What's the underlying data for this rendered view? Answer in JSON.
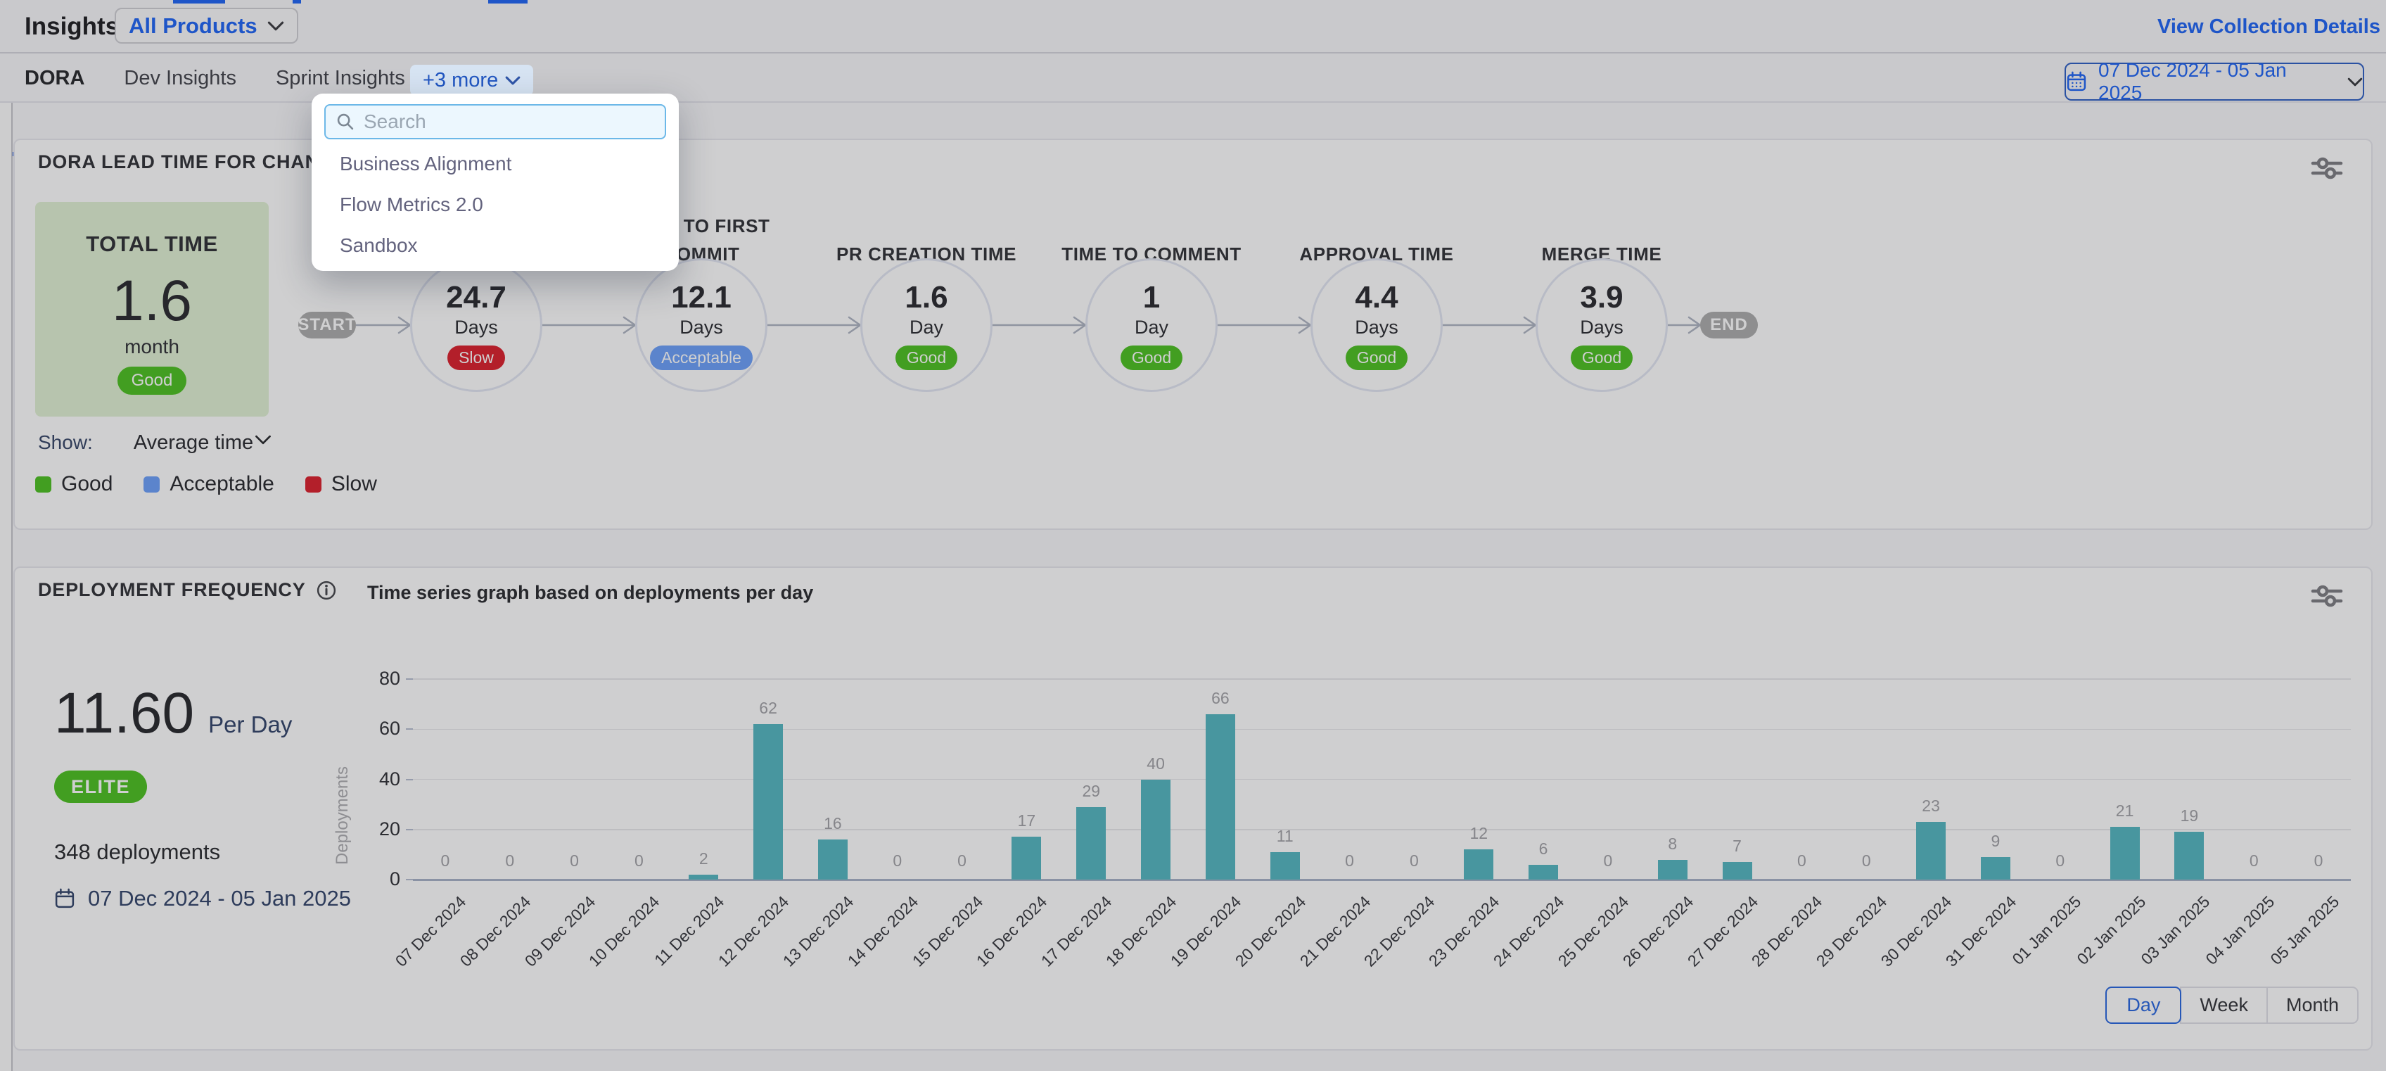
{
  "colors": {
    "accent_blue": "#2468f5",
    "date_border_blue": "#3263c6",
    "tab_underline_blue": "#2563eb",
    "good": "#50c226",
    "acceptable": "#6fa2fa",
    "slow": "#dd2531",
    "bar_teal": "#58b8c2",
    "total_box_bg": "#e2f2d5",
    "node_gray": "#aeaeae"
  },
  "top_bar": {
    "title": "Insights for",
    "product_selector": "All Products",
    "view_collection_details": "View Collection Details"
  },
  "tab_bar": {
    "tabs": [
      {
        "label": "DORA",
        "active": true
      },
      {
        "label": "Dev Insights",
        "active": false
      },
      {
        "label": "Sprint Insights",
        "active": false
      }
    ],
    "more_label": "+3 more"
  },
  "more_dropdown": {
    "search_placeholder": "Search",
    "items": [
      "Business Alignment",
      "Flow Metrics 2.0",
      "Sandbox"
    ]
  },
  "date_range_picker": {
    "label": "07 Dec 2024 - 05 Jan 2025"
  },
  "lead_time_card": {
    "title": "DORA LEAD TIME FOR CHANGES REPORT",
    "total_block": {
      "label": "TOTAL TIME",
      "value": "1.6",
      "unit": "month",
      "badge": "Good",
      "badge_type": "good"
    },
    "show": {
      "label": "Show:",
      "value": "Average time"
    },
    "flow": {
      "start": "START",
      "end": "END",
      "stages": [
        {
          "label": "",
          "value": "24.7",
          "unit": "Days",
          "badge": "Slow",
          "badge_type": "slow"
        },
        {
          "label": "TIME TO FIRST COMMIT",
          "value": "12.1",
          "unit": "Days",
          "badge": "Acceptable",
          "badge_type": "acceptable"
        },
        {
          "label": "PR CREATION TIME",
          "value": "1.6",
          "unit": "Day",
          "badge": "Good",
          "badge_type": "good"
        },
        {
          "label": "TIME TO COMMENT",
          "value": "1",
          "unit": "Day",
          "badge": "Good",
          "badge_type": "good"
        },
        {
          "label": "APPROVAL TIME",
          "value": "4.4",
          "unit": "Days",
          "badge": "Good",
          "badge_type": "good"
        },
        {
          "label": "MERGE TIME",
          "value": "3.9",
          "unit": "Days",
          "badge": "Good",
          "badge_type": "good"
        }
      ]
    },
    "legend": [
      {
        "label": "Good",
        "type": "good"
      },
      {
        "label": "Acceptable",
        "type": "acceptable"
      },
      {
        "label": "Slow",
        "type": "slow"
      }
    ]
  },
  "deployment_card": {
    "title": "DEPLOYMENT FREQUENCY",
    "subtitle": "Time series graph based on deployments per day",
    "rate": {
      "value": "11.60",
      "unit": "Per Day"
    },
    "tier_badge": "ELITE",
    "total_deployments": "348 deployments",
    "date_range": "07 Dec 2024 - 05 Jan 2025",
    "granularity": {
      "options": [
        "Day",
        "Week",
        "Month"
      ],
      "active": "Day"
    }
  },
  "chart_data": {
    "type": "bar",
    "title": "Time series graph based on deployments per day",
    "categories": [
      "07 Dec 2024",
      "08 Dec 2024",
      "09 Dec 2024",
      "10 Dec 2024",
      "11 Dec 2024",
      "12 Dec 2024",
      "13 Dec 2024",
      "14 Dec 2024",
      "15 Dec 2024",
      "16 Dec 2024",
      "17 Dec 2024",
      "18 Dec 2024",
      "19 Dec 2024",
      "20 Dec 2024",
      "21 Dec 2024",
      "22 Dec 2024",
      "23 Dec 2024",
      "24 Dec 2024",
      "25 Dec 2024",
      "26 Dec 2024",
      "27 Dec 2024",
      "28 Dec 2024",
      "29 Dec 2024",
      "30 Dec 2024",
      "31 Dec 2024",
      "01 Jan 2025",
      "02 Jan 2025",
      "03 Jan 2025",
      "04 Jan 2025",
      "05 Jan 2025"
    ],
    "values": [
      0,
      0,
      0,
      0,
      2,
      62,
      16,
      0,
      0,
      17,
      29,
      40,
      66,
      11,
      0,
      0,
      12,
      6,
      0,
      8,
      7,
      0,
      0,
      23,
      9,
      0,
      21,
      19,
      0,
      0
    ],
    "xlabel": "",
    "ylabel": "Deployments",
    "ylim": [
      0,
      80
    ],
    "yticks": [
      0,
      20,
      40,
      60,
      80
    ],
    "grid": true,
    "legend": false
  }
}
